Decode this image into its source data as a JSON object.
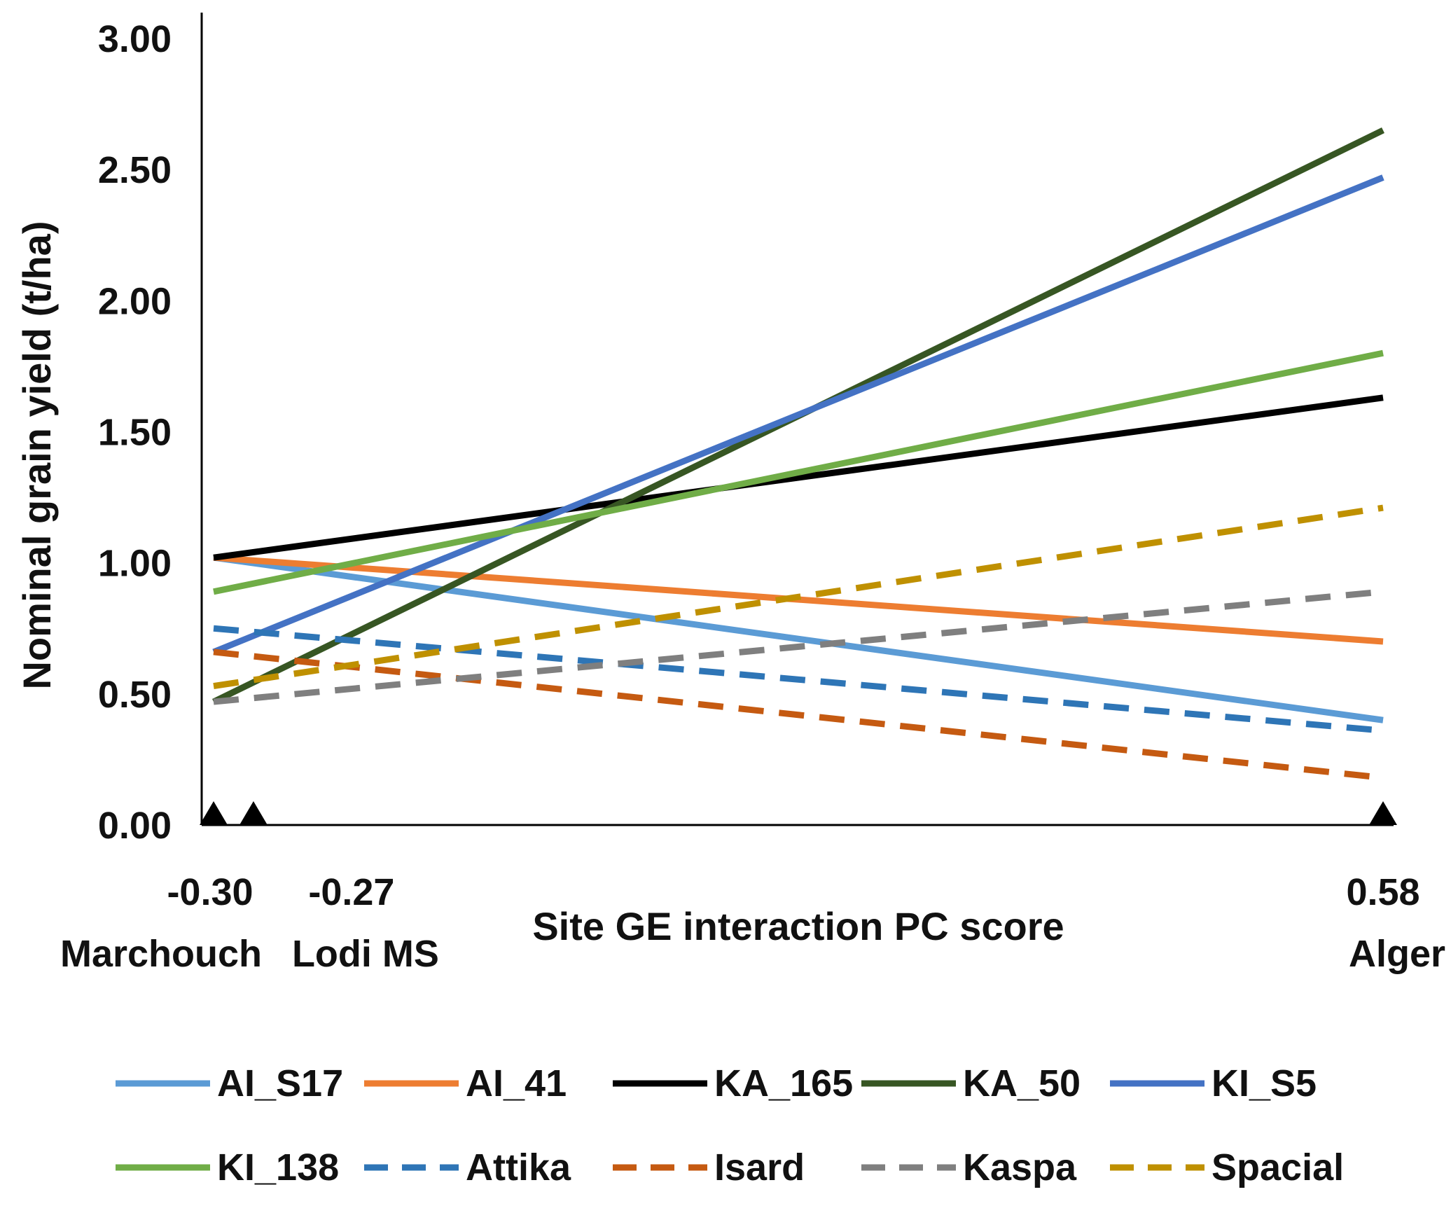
{
  "chart_data": {
    "type": "line",
    "title": "",
    "xlabel": "Site GE interaction PC score",
    "ylabel": "Nominal grain yield (t/ha)",
    "xlim": [
      -0.3,
      0.58
    ],
    "ylim": [
      0,
      3
    ],
    "y_ticks": [
      "0.00",
      "0.50",
      "1.00",
      "1.50",
      "2.00",
      "2.50",
      "3.00"
    ],
    "y_tick_values": [
      0,
      0.5,
      1,
      1.5,
      2,
      2.5,
      3
    ],
    "x_ticks": [
      {
        "value": -0.3,
        "label": "-0.30",
        "site": "Marchouch"
      },
      {
        "value": -0.27,
        "label": "-0.27",
        "site": "Lodi MS"
      },
      {
        "value": 0.58,
        "label": "0.58",
        "site": "Alger"
      }
    ],
    "grid": false,
    "legend_position": "bottom",
    "series": [
      {
        "name": "AI_S17",
        "color": "#5b9bd5",
        "dashed": false,
        "y_start": 1.02,
        "y_end": 0.4
      },
      {
        "name": "AI_41",
        "color": "#ed7d31",
        "dashed": false,
        "y_start": 1.02,
        "y_end": 0.7
      },
      {
        "name": "KA_165",
        "color": "#000000",
        "dashed": false,
        "y_start": 1.02,
        "y_end": 1.63
      },
      {
        "name": "KA_50",
        "color": "#375623",
        "dashed": false,
        "y_start": 0.47,
        "y_end": 2.65
      },
      {
        "name": "KI_S5",
        "color": "#4472c4",
        "dashed": false,
        "y_start": 0.66,
        "y_end": 2.47
      },
      {
        "name": "KI_138",
        "color": "#70ad47",
        "dashed": false,
        "y_start": 0.89,
        "y_end": 1.8
      },
      {
        "name": "Attika",
        "color": "#2e75b6",
        "dashed": true,
        "y_start": 0.75,
        "y_end": 0.36
      },
      {
        "name": "Isard",
        "color": "#c55a11",
        "dashed": true,
        "y_start": 0.66,
        "y_end": 0.18
      },
      {
        "name": "Kaspa",
        "color": "#7f7f7f",
        "dashed": true,
        "y_start": 0.47,
        "y_end": 0.89
      },
      {
        "name": "Spacial",
        "color": "#bf9000",
        "dashed": true,
        "y_start": 0.53,
        "y_end": 1.21
      }
    ]
  }
}
